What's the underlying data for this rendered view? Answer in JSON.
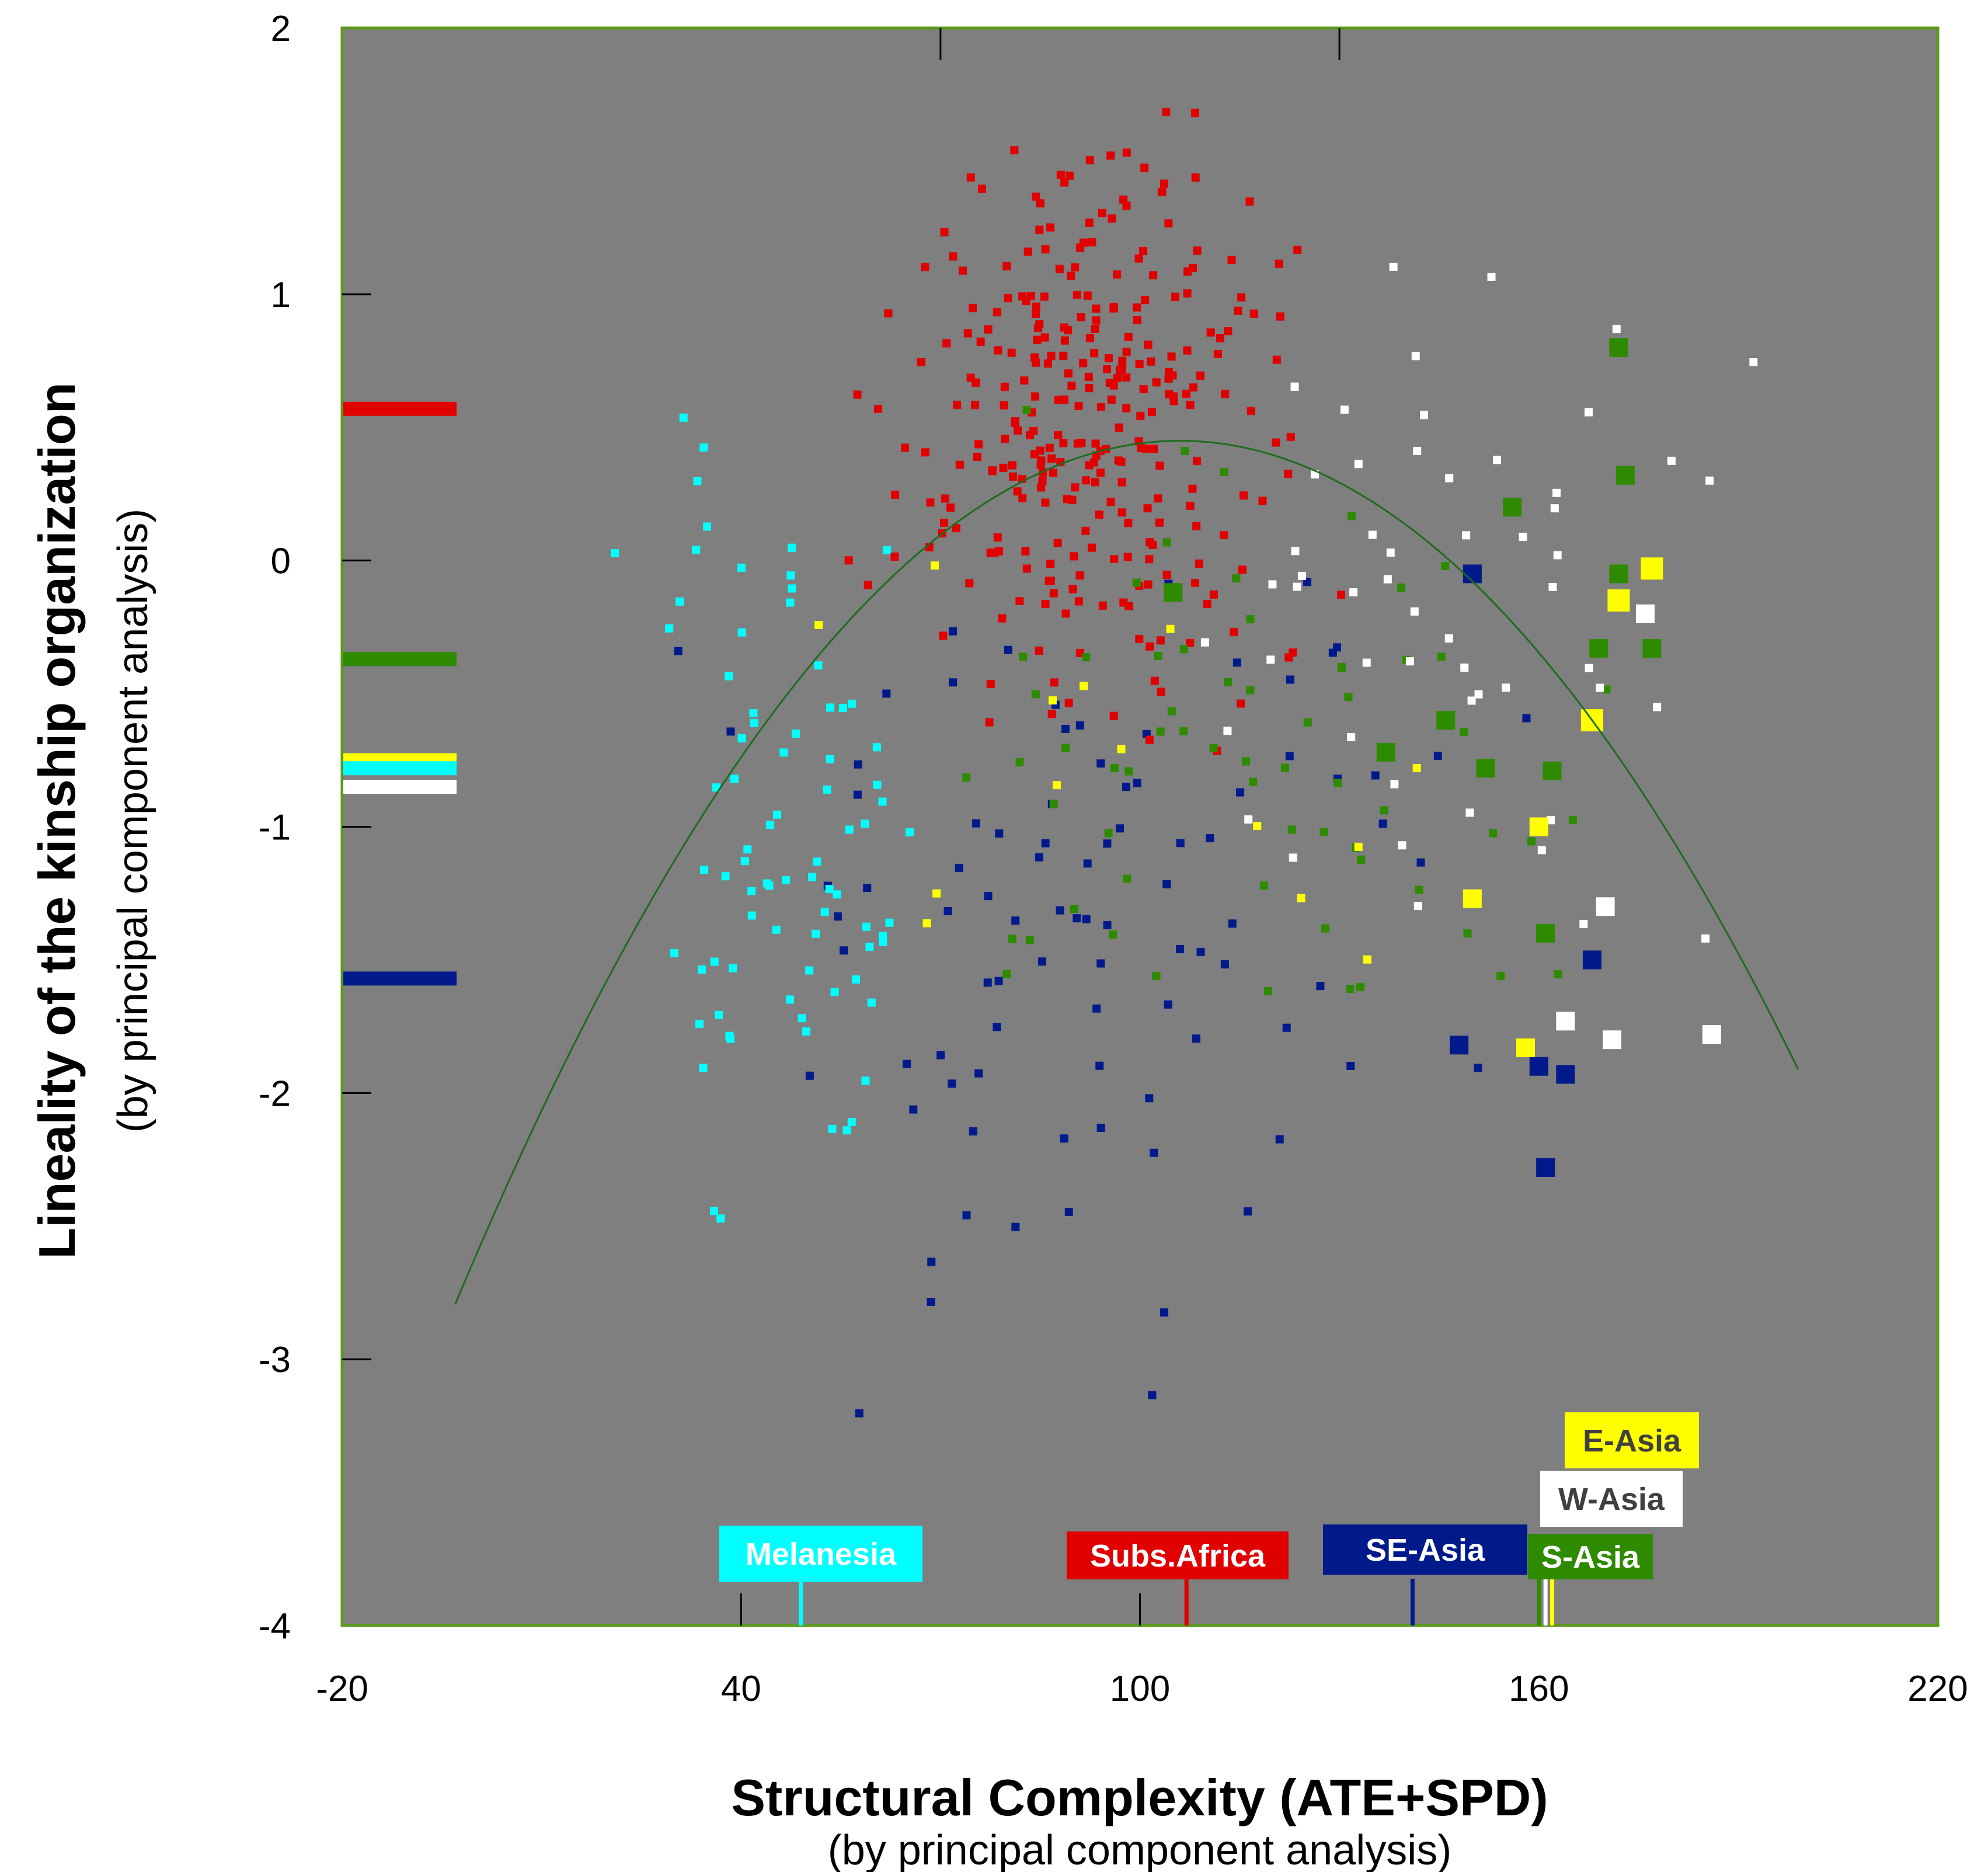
{
  "chart_data": {
    "type": "scatter",
    "title": "",
    "xlabel": "Structural Complexity (ATE+SPD)",
    "xlabel_sub": "(by principal component analysis)",
    "ylabel": "Lineality of the kinship organization",
    "ylabel_sub": "(by principal component analysis)",
    "xlim": [
      -20,
      220
    ],
    "ylim": [
      -4,
      2
    ],
    "x_ticks": [
      -20,
      40,
      100,
      160,
      220
    ],
    "x_tick_labels": [
      "-20",
      "40",
      "100",
      "160",
      "220"
    ],
    "y_ticks": [
      2,
      1,
      0,
      -1,
      -2,
      -3,
      -4
    ],
    "y_tick_labels": [
      "2",
      "1",
      "0",
      "-1",
      "-2",
      "-3",
      "-4"
    ],
    "grid": false,
    "background": "#7f7f7f",
    "frame_color": "#5b9a1a",
    "regions": [
      {
        "name": "Subs.Africa",
        "color": "#e00000",
        "text_color": "#ffffff",
        "mean_x": 107,
        "mean_y": 0.57,
        "n": 300,
        "x_center": 93,
        "x_spread": 20,
        "y_center": 0.5,
        "y_spread": 0.68,
        "x_range": [
          8,
          162
        ],
        "y_range": [
          -2.6,
          1.7
        ],
        "marker": "small"
      },
      {
        "name": "Melanesia",
        "color": "#00ffff",
        "text_color": "#ffffff",
        "mean_x": 49,
        "mean_y": -0.78,
        "n": 80,
        "x_center": 44,
        "x_spread": 14,
        "y_center": -0.95,
        "y_spread": 0.95,
        "x_range": [
          20,
          72
        ],
        "y_range": [
          -3.45,
          0.7
        ],
        "marker": "small"
      },
      {
        "name": "SE-Asia",
        "color": "#001a8c",
        "text_color": "#ffffff",
        "mean_x": 141,
        "mean_y": -1.57,
        "n": 90,
        "x_center": 88,
        "x_spread": 36,
        "y_center": -1.3,
        "y_spread": 1.05,
        "x_range": [
          0,
          175
        ],
        "y_range": [
          -3.5,
          1.3
        ],
        "marker": "small"
      },
      {
        "name": "S-Asia",
        "color": "#2e8b00",
        "text_color": "#ffffff",
        "mean_x": 160,
        "mean_y": -0.37,
        "n": 65,
        "x_center": 120,
        "x_spread": 36,
        "y_center": -0.8,
        "y_spread": 0.75,
        "x_range": [
          10,
          205
        ],
        "y_range": [
          -2.5,
          0.8
        ],
        "marker": "small"
      },
      {
        "name": "W-Asia",
        "color": "#ffffff",
        "text_color": "#404040",
        "mean_x": 161,
        "mean_y": -0.85,
        "n": 55,
        "x_center": 140,
        "x_spread": 30,
        "y_center": -0.2,
        "y_spread": 0.85,
        "x_range": [
          80,
          200
        ],
        "y_range": [
          -3.9,
          1.35
        ],
        "marker": "small"
      },
      {
        "name": "E-Asia",
        "color": "#ffff00",
        "text_color": "#404040",
        "mean_x": 162,
        "mean_y": -0.75,
        "n": 14,
        "x_center": 90,
        "x_spread": 40,
        "y_center": -1.0,
        "y_spread": 0.7,
        "x_range": [
          30,
          190
        ],
        "y_range": [
          -2.1,
          0.4
        ],
        "marker": "small"
      }
    ],
    "large_markers": [
      {
        "region": "SE-Asia",
        "x": 150,
        "y": -0.05
      },
      {
        "region": "SE-Asia",
        "x": 148,
        "y": -1.82
      },
      {
        "region": "SE-Asia",
        "x": 160,
        "y": -1.9
      },
      {
        "region": "SE-Asia",
        "x": 164,
        "y": -1.93
      },
      {
        "region": "SE-Asia",
        "x": 161,
        "y": -2.28
      },
      {
        "region": "SE-Asia",
        "x": 168,
        "y": -1.5
      },
      {
        "region": "S-Asia",
        "x": 105,
        "y": -0.12
      },
      {
        "region": "S-Asia",
        "x": 137,
        "y": -0.72
      },
      {
        "region": "S-Asia",
        "x": 146,
        "y": -0.6
      },
      {
        "region": "S-Asia",
        "x": 152,
        "y": -0.78
      },
      {
        "region": "S-Asia",
        "x": 156,
        "y": 0.2
      },
      {
        "region": "S-Asia",
        "x": 162,
        "y": -0.79
      },
      {
        "region": "S-Asia",
        "x": 169,
        "y": -0.33
      },
      {
        "region": "S-Asia",
        "x": 172,
        "y": -0.05
      },
      {
        "region": "S-Asia",
        "x": 173,
        "y": 0.32
      },
      {
        "region": "S-Asia",
        "x": 172,
        "y": 0.8
      },
      {
        "region": "S-Asia",
        "x": 177,
        "y": -0.33
      },
      {
        "region": "S-Asia",
        "x": 161,
        "y": -1.4
      },
      {
        "region": "E-Asia",
        "x": 168,
        "y": -0.6
      },
      {
        "region": "E-Asia",
        "x": 172,
        "y": -0.15
      },
      {
        "region": "E-Asia",
        "x": 177,
        "y": -0.03
      },
      {
        "region": "E-Asia",
        "x": 160,
        "y": -1.0
      },
      {
        "region": "E-Asia",
        "x": 150,
        "y": -1.27
      },
      {
        "region": "E-Asia",
        "x": 158,
        "y": -1.83
      },
      {
        "region": "W-Asia",
        "x": 176,
        "y": -0.2
      },
      {
        "region": "W-Asia",
        "x": 170,
        "y": -1.3
      },
      {
        "region": "W-Asia",
        "x": 164,
        "y": -1.73
      },
      {
        "region": "W-Asia",
        "x": 171,
        "y": -1.8
      },
      {
        "region": "W-Asia",
        "x": 186,
        "y": -1.78
      }
    ],
    "trend_curve": {
      "type": "quadratic",
      "x_range": [
        -3,
        200
      ],
      "vertex_x": 106,
      "vertex_y": 0.45,
      "curvature": -0.000273
    }
  },
  "legend_order": [
    "Subs.Africa",
    "S-Asia",
    "E-Asia",
    "Melanesia",
    "W-Asia",
    "SE-Asia"
  ]
}
